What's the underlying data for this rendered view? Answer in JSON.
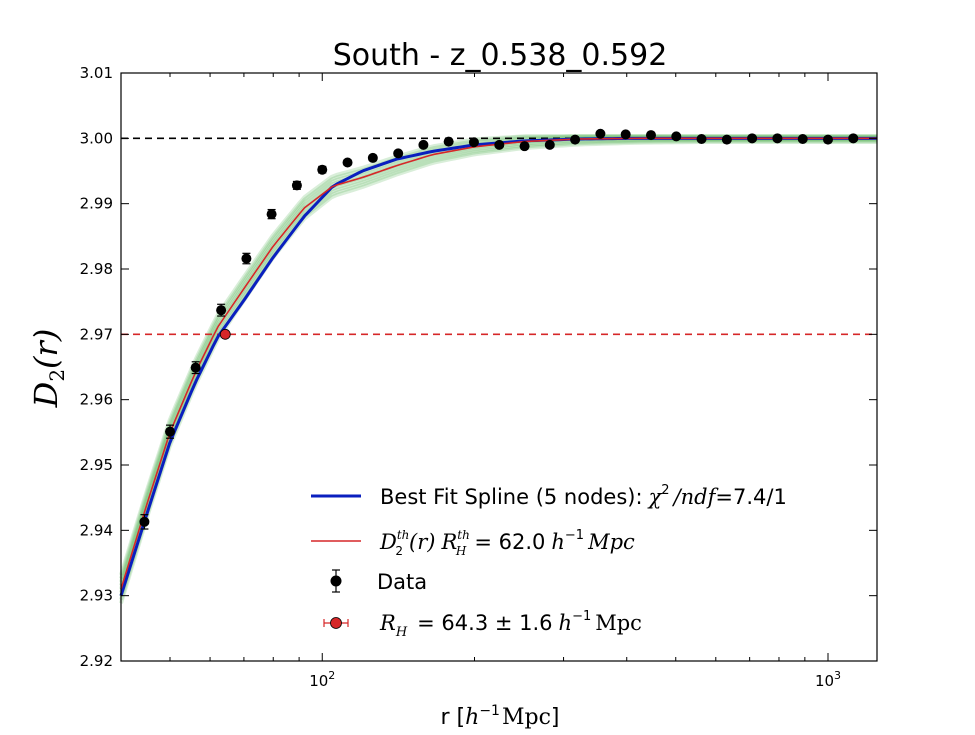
{
  "chart_data": {
    "type": "scatter",
    "title": "South - z_0.538_0.592",
    "xlabel_prefix": "r [",
    "xlabel_math": "h",
    "xlabel_sup": "−1",
    "xlabel_unit": "Mpc",
    "xlabel_suffix": "]",
    "ylabel_main": "D",
    "ylabel_sub": "2",
    "ylabel_args": "(r)",
    "xscale": "log",
    "xlim": [
      40,
      1250
    ],
    "ylim": [
      2.92,
      3.01
    ],
    "yticks": [
      2.92,
      2.93,
      2.94,
      2.95,
      2.96,
      2.97,
      2.98,
      2.99,
      3.0,
      3.01
    ],
    "ytick_labels": [
      "2.92",
      "2.93",
      "2.94",
      "2.95",
      "2.96",
      "2.97",
      "2.98",
      "2.99",
      "3.00",
      "3.01"
    ],
    "xticks": [
      100,
      1000
    ],
    "xtick_base": "10",
    "xtick_exps": [
      "2",
      "3"
    ],
    "reference_lines": [
      {
        "y": 3.0,
        "color": "#000000",
        "style": "dashed"
      },
      {
        "y": 2.97,
        "color": "#d62728",
        "style": "dashed"
      }
    ],
    "data_points": {
      "name": "Data",
      "x": [
        44.5,
        50.0,
        56.2,
        63.1,
        70.8,
        79.4,
        89.1,
        100.0,
        112.2,
        125.9,
        141.3,
        158.5,
        177.8,
        199.5,
        223.9,
        251.2,
        281.8,
        316.2,
        354.8,
        398.1,
        446.7,
        501.2,
        562.3,
        631.0,
        707.9,
        794.3,
        891.3,
        1000.0,
        1122.0
      ],
      "y": [
        2.9413,
        2.9551,
        2.9649,
        2.9737,
        2.9816,
        2.9884,
        2.9928,
        2.9952,
        2.9963,
        2.997,
        2.9977,
        2.999,
        2.9995,
        2.9994,
        2.999,
        2.9988,
        2.999,
        2.9998,
        3.0007,
        3.0006,
        3.0005,
        3.0003,
        2.9999,
        2.9998,
        3.0,
        3.0,
        2.9999,
        2.9998,
        3.0
      ],
      "yerr": [
        0.0011,
        0.001,
        0.0009,
        0.0009,
        0.0008,
        0.0007,
        0.0006,
        0.0005,
        0.0004,
        0.0004,
        0.0003,
        0.0003,
        0.0003,
        0.0003,
        0.0003,
        0.0003,
        0.0003,
        0.0003,
        0.0003,
        0.0003,
        0.0003,
        0.0003,
        0.0002,
        0.0002,
        0.0002,
        0.0002,
        0.0002,
        0.0002,
        0.0002
      ],
      "color": "#000000"
    },
    "best_fit_spline": {
      "x": [
        40,
        45,
        50,
        56,
        62,
        70,
        80,
        92,
        105,
        120,
        140,
        165,
        200,
        250,
        320,
        420,
        560,
        750,
        1000,
        1250
      ],
      "y": [
        2.93,
        2.9425,
        2.9535,
        2.9625,
        2.9695,
        2.9752,
        2.9818,
        2.988,
        2.9927,
        2.995,
        2.9968,
        2.998,
        2.999,
        2.9996,
        2.9999,
        3.0,
        3.0,
        3.0,
        3.0,
        3.0
      ],
      "color": "#0a1fbf"
    },
    "theory_curve": {
      "x": [
        40,
        45,
        50,
        56,
        62,
        70,
        80,
        92,
        105,
        120,
        140,
        165,
        200,
        250,
        320,
        420,
        560,
        750,
        1000,
        1250
      ],
      "y": [
        2.931,
        2.944,
        2.955,
        2.964,
        2.971,
        2.977,
        2.9835,
        2.9893,
        2.9927,
        2.994,
        2.9958,
        2.9975,
        2.9987,
        2.9995,
        2.9999,
        3.0,
        3.0,
        3.0,
        3.0,
        3.0
      ],
      "color": "#d62728"
    },
    "homogeneity_point": {
      "x": 64.3,
      "y": 2.97,
      "xerr": 1.6,
      "color": "#d62728"
    },
    "band_color": "#2ca02c",
    "legend": {
      "placement": "lower-right",
      "spline_label_text": "Best Fit Spline (5 nodes):",
      "spline_label_chi": "χ",
      "spline_label_chi_sup": "2",
      "spline_label_ndf": "/ndf",
      "spline_label_value": "=7.4/1",
      "theory_label_D": "D",
      "theory_label_D_sup": "th",
      "theory_label_D_sub": "2",
      "theory_label_args": "(r)",
      "theory_label_R": "R",
      "theory_label_R_sup": "th",
      "theory_label_R_sub": "H",
      "theory_label_value": "= 62.0",
      "theory_label_h": "h",
      "theory_label_h_sup": "−1",
      "theory_label_unit": "Mpc",
      "data_label": "Data",
      "rh_label_R": "R",
      "rh_label_R_sub": "H",
      "rh_label_value": "= 64.3 ± 1.6",
      "rh_label_h": "h",
      "rh_label_h_sup": "−1",
      "rh_label_unit": "Mpc"
    }
  }
}
